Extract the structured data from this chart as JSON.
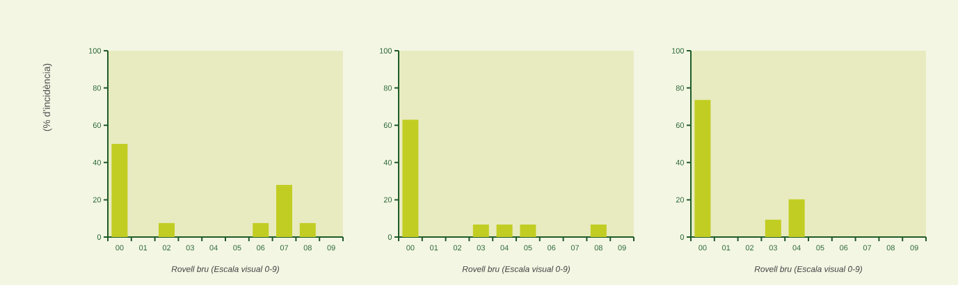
{
  "chart_data": [
    {
      "type": "bar",
      "categories": [
        "00",
        "01",
        "02",
        "03",
        "04",
        "05",
        "06",
        "07",
        "08",
        "09"
      ],
      "values": [
        50,
        0,
        7.5,
        0,
        0,
        0,
        7.5,
        28,
        7.5,
        0
      ],
      "color": "#c2cd23",
      "xlabel": "Rovell bru (Escala visual 0-9)",
      "ylabel": "(% d’incidència)",
      "ylim": [
        0,
        100
      ],
      "yticks": [
        0,
        20,
        40,
        60,
        80,
        100
      ]
    },
    {
      "type": "bar",
      "categories": [
        "00",
        "01",
        "02",
        "03",
        "04",
        "05",
        "06",
        "07",
        "08",
        "09"
      ],
      "values": [
        63,
        0,
        0,
        6.7,
        6.7,
        6.7,
        0,
        0,
        6.7,
        0
      ],
      "color": "#c2cd23",
      "xlabel": "Rovell bru (Escala visual 0-9)",
      "ylim": [
        0,
        100
      ],
      "yticks": [
        0,
        20,
        40,
        60,
        80,
        100
      ]
    },
    {
      "type": "bar",
      "categories": [
        "00",
        "01",
        "02",
        "03",
        "04",
        "05",
        "06",
        "07",
        "08",
        "09"
      ],
      "values": [
        73.6,
        0,
        0,
        9.3,
        20.2,
        0,
        0,
        0,
        0,
        0
      ],
      "color": "#c2cd23",
      "xlabel": "Rovell bru (Escala visual 0-9)",
      "ylim": [
        0,
        100
      ],
      "yticks": [
        0,
        20,
        40,
        60,
        80,
        100
      ]
    }
  ]
}
